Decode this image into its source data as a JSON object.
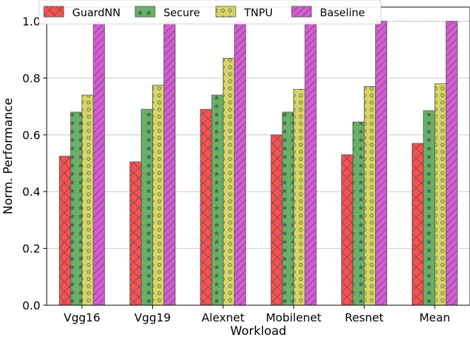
{
  "chart_data": {
    "type": "bar",
    "title": "",
    "xlabel": "Workload",
    "ylabel": "Norm. Performance",
    "ylim": [
      0,
      1.05
    ],
    "yticks": [
      "0.0",
      "0.2",
      "0.4",
      "0.6",
      "0.8",
      "1.0"
    ],
    "grid": "horizontal",
    "legend_position": "top",
    "categories": [
      "Vgg16",
      "Vgg19",
      "Alexnet",
      "Mobilenet",
      "Resnet",
      "Mean"
    ],
    "series": [
      {
        "name": "GuardNN",
        "color": "#ff4f4f",
        "hatch": "x",
        "values": [
          0.525,
          0.505,
          0.69,
          0.6,
          0.53,
          0.57
        ]
      },
      {
        "name": "Secure",
        "color": "#66b266",
        "hatch": "star",
        "values": [
          0.68,
          0.69,
          0.74,
          0.68,
          0.645,
          0.685
        ]
      },
      {
        "name": "TNPU",
        "color": "#d6d665",
        "hatch": "circle",
        "values": [
          0.74,
          0.775,
          0.87,
          0.76,
          0.77,
          0.78
        ]
      },
      {
        "name": "Baseline",
        "color": "#d65ad6",
        "hatch": "diag",
        "values": [
          1.0,
          1.0,
          1.0,
          1.0,
          1.0,
          1.0
        ]
      }
    ]
  }
}
